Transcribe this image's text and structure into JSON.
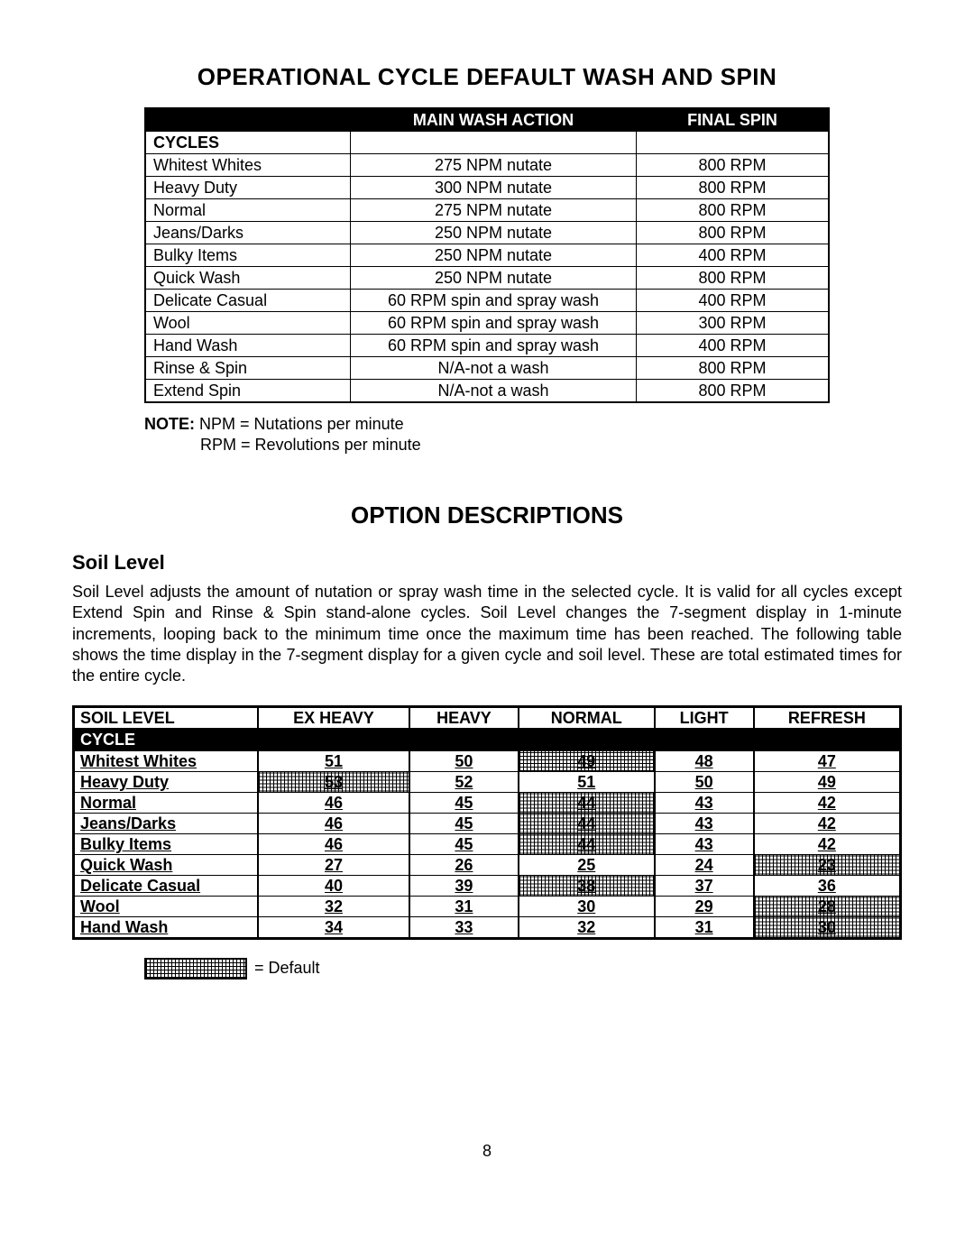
{
  "title1": "OPERATIONAL CYCLE DEFAULT WASH AND SPIN",
  "washTable": {
    "headers": [
      "",
      "MAIN WASH ACTION",
      "FINAL SPIN"
    ],
    "cyclesLabel": "CYCLES",
    "rows": [
      {
        "cycle": "Whitest Whites",
        "main": "275 NPM nutate",
        "spin": "800 RPM"
      },
      {
        "cycle": "Heavy Duty",
        "main": "300 NPM nutate",
        "spin": "800 RPM"
      },
      {
        "cycle": "Normal",
        "main": "275 NPM nutate",
        "spin": "800 RPM"
      },
      {
        "cycle": "Jeans/Darks",
        "main": "250 NPM nutate",
        "spin": "800 RPM"
      },
      {
        "cycle": "Bulky Items",
        "main": "250 NPM nutate",
        "spin": "400 RPM"
      },
      {
        "cycle": "Quick Wash",
        "main": "250 NPM nutate",
        "spin": "800 RPM"
      },
      {
        "cycle": "Delicate Casual",
        "main": "60 RPM spin and spray wash",
        "spin": "400 RPM"
      },
      {
        "cycle": "Wool",
        "main": "60 RPM spin and spray wash",
        "spin": "300 RPM"
      },
      {
        "cycle": "Hand Wash",
        "main": "60 RPM spin and spray wash",
        "spin": "400 RPM"
      },
      {
        "cycle": "Rinse & Spin",
        "main": "N/A-not a wash",
        "spin": "800 RPM"
      },
      {
        "cycle": "Extend Spin",
        "main": "N/A-not a wash",
        "spin": "800 RPM"
      }
    ]
  },
  "note": {
    "label": "NOTE:",
    "line1": "NPM = Nutations per minute",
    "line2": "RPM = Revolutions per minute"
  },
  "title2": "OPTION DESCRIPTIONS",
  "soilLevel": {
    "heading": "Soil Level",
    "paragraph": "Soil Level adjusts the amount of nutation or spray wash time in the selected cycle.  It is valid for all cycles except Extend Spin and Rinse & Spin stand-alone cycles.  Soil Level changes the 7-segment display in 1-minute increments, looping back to the minimum time once the maximum time has been reached.  The following table shows the time display in the 7-segment display for a given cycle and soil level.  These are total estimated times for the entire cycle."
  },
  "soilTable": {
    "headers": [
      "SOIL LEVEL",
      "EX HEAVY",
      "HEAVY",
      "NORMAL",
      "LIGHT",
      "REFRESH"
    ],
    "cycleLabel": "CYCLE",
    "rows": [
      {
        "cycle": "Whitest Whites",
        "vals": [
          "51",
          "50",
          "49",
          "48",
          "47"
        ],
        "defaultCol": 2
      },
      {
        "cycle": "Heavy Duty",
        "vals": [
          "53",
          "52",
          "51",
          "50",
          "49"
        ],
        "defaultCol": 0
      },
      {
        "cycle": "Normal",
        "vals": [
          "46",
          "45",
          "44",
          "43",
          "42"
        ],
        "defaultCol": 2
      },
      {
        "cycle": "Jeans/Darks",
        "vals": [
          "46",
          "45",
          "44",
          "43",
          "42"
        ],
        "defaultCol": 2
      },
      {
        "cycle": "Bulky Items",
        "vals": [
          "46",
          "45",
          "44",
          "43",
          "42"
        ],
        "defaultCol": 2
      },
      {
        "cycle": "Quick Wash",
        "vals": [
          "27",
          "26",
          "25",
          "24",
          "23"
        ],
        "defaultCol": 4
      },
      {
        "cycle": "Delicate Casual",
        "vals": [
          "40",
          "39",
          "38",
          "37",
          "36"
        ],
        "defaultCol": 2
      },
      {
        "cycle": "Wool",
        "vals": [
          "32",
          "31",
          "30",
          "29",
          "28"
        ],
        "defaultCol": 4
      },
      {
        "cycle": "Hand Wash",
        "vals": [
          "34",
          "33",
          "32",
          "31",
          "30"
        ],
        "defaultCol": 4
      }
    ]
  },
  "legend": "= Default",
  "pageNumber": "8"
}
